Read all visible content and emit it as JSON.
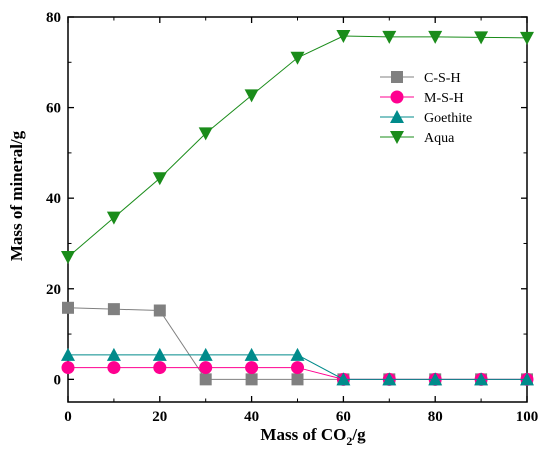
{
  "chart_data": {
    "type": "line",
    "title": "",
    "xlabel": "Mass of CO",
    "xlabel_sub": "2",
    "xlabel_suffix": "/g",
    "ylabel": "Mass of mineral/g",
    "xlim": [
      0,
      100
    ],
    "ylim": [
      -5,
      80
    ],
    "xticks": [
      0,
      20,
      40,
      60,
      80,
      100
    ],
    "yticks": [
      0,
      20,
      40,
      60,
      80
    ],
    "legend_position": "top-right",
    "grid": false,
    "x": [
      0,
      10,
      20,
      30,
      40,
      50,
      60,
      70,
      80,
      90,
      100
    ],
    "series": [
      {
        "name": "C-S-H",
        "marker": "square",
        "color": "#808080",
        "values": [
          15.8,
          15.5,
          15.2,
          0,
          0,
          0,
          0,
          0,
          0,
          0,
          0
        ]
      },
      {
        "name": "M-S-H",
        "marker": "circle",
        "color": "#ff0090",
        "values": [
          2.6,
          2.6,
          2.6,
          2.6,
          2.6,
          2.6,
          0,
          0,
          0,
          0,
          0
        ]
      },
      {
        "name": "Goethite",
        "marker": "triangle-up",
        "color": "#008b8b",
        "values": [
          5.4,
          5.4,
          5.4,
          5.4,
          5.4,
          5.4,
          0,
          0,
          0,
          0,
          0
        ]
      },
      {
        "name": "Aqua",
        "marker": "triangle-down",
        "color": "#1a8c1a",
        "values": [
          27,
          35.7,
          44.4,
          54.3,
          62.7,
          71,
          75.8,
          75.6,
          75.6,
          75.5,
          75.4
        ]
      }
    ]
  }
}
